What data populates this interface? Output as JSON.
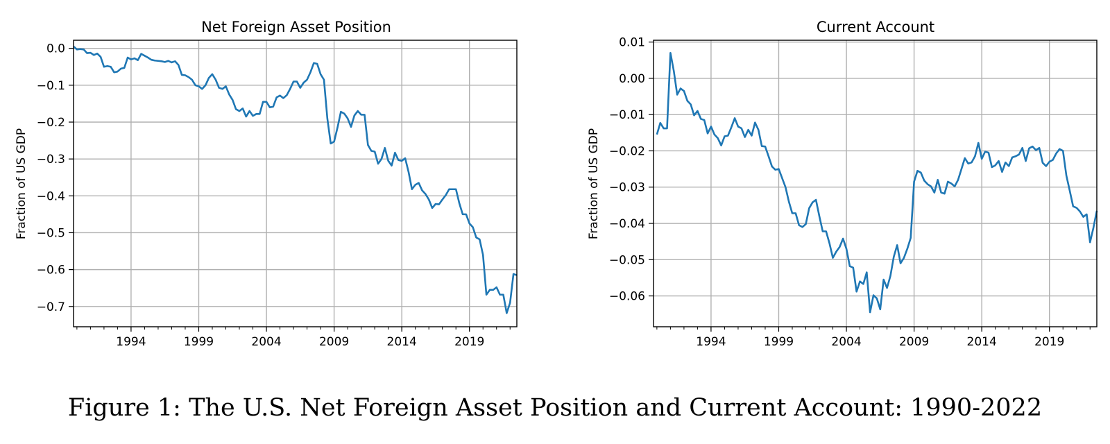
{
  "caption": "Figure 1: The U.S. Net Foreign Asset Position and Current Account: 1990-2022",
  "colors": {
    "line": "#1f77b4",
    "grid": "#b0b0b0",
    "axis": "#000000"
  },
  "chart_data": [
    {
      "type": "line",
      "title": "Net Foreign Asset Position",
      "xlabel": "",
      "ylabel": "Fraction of US GDP",
      "grid": true,
      "xlim": [
        1989.75,
        2022.5
      ],
      "ylim": [
        -0.755,
        0.022
      ],
      "xticks": [
        1994,
        1999,
        2004,
        2009,
        2014,
        2019
      ],
      "xtick_labels": [
        "1994",
        "1999",
        "2004",
        "2009",
        "2014",
        "2019"
      ],
      "yticks": [
        0.0,
        -0.1,
        -0.2,
        -0.3,
        -0.4,
        -0.5,
        -0.6,
        -0.7
      ],
      "ytick_labels": [
        "0.0",
        "−0.1",
        "−0.2",
        "−0.3",
        "−0.4",
        "−0.5",
        "−0.6",
        "−0.7"
      ],
      "series": [
        {
          "x": [
            1989.75,
            1990,
            1990.25,
            1990.5,
            1990.75,
            1991,
            1991.25,
            1991.5,
            1991.75,
            1992,
            1992.25,
            1992.5,
            1992.75,
            1993,
            1993.25,
            1993.5,
            1993.75,
            1994,
            1994.25,
            1994.5,
            1994.75,
            1995,
            1995.25,
            1995.5,
            1995.75,
            1996,
            1996.25,
            1996.5,
            1996.75,
            1997,
            1997.25,
            1997.5,
            1997.75,
            1998,
            1998.25,
            1998.5,
            1998.75,
            1999,
            1999.25,
            1999.5,
            1999.75,
            2000,
            2000.25,
            2000.5,
            2000.75,
            2001,
            2001.25,
            2001.5,
            2001.75,
            2002,
            2002.25,
            2002.5,
            2002.75,
            2003,
            2003.25,
            2003.5,
            2003.75,
            2004,
            2004.25,
            2004.5,
            2004.75,
            2005,
            2005.25,
            2005.5,
            2005.75,
            2006,
            2006.25,
            2006.5,
            2006.75,
            2007,
            2007.25,
            2007.5,
            2007.75,
            2008,
            2008.25,
            2008.5,
            2008.75,
            2009,
            2009.25,
            2009.5,
            2009.75,
            2010,
            2010.25,
            2010.5,
            2010.75,
            2011,
            2011.25,
            2011.5,
            2011.75,
            2012,
            2012.25,
            2012.5,
            2012.75,
            2013,
            2013.25,
            2013.5,
            2013.75,
            2014,
            2014.25,
            2014.5,
            2014.75,
            2015,
            2015.25,
            2015.5,
            2015.75,
            2016,
            2016.25,
            2016.5,
            2016.75,
            2017,
            2017.25,
            2017.5,
            2017.75,
            2018,
            2018.25,
            2018.5,
            2018.75,
            2019,
            2019.25,
            2019.5,
            2019.75,
            2020,
            2020.25,
            2020.5,
            2020.75,
            2021,
            2021.25,
            2021.5,
            2021.75,
            2022,
            2022.25,
            2022.5
          ],
          "values": [
            0.005,
            -0.003,
            -0.002,
            -0.003,
            -0.013,
            -0.012,
            -0.018,
            -0.014,
            -0.023,
            -0.05,
            -0.048,
            -0.05,
            -0.065,
            -0.063,
            -0.055,
            -0.053,
            -0.025,
            -0.03,
            -0.027,
            -0.032,
            -0.015,
            -0.02,
            -0.025,
            -0.031,
            -0.033,
            -0.034,
            -0.035,
            -0.037,
            -0.034,
            -0.038,
            -0.035,
            -0.045,
            -0.072,
            -0.073,
            -0.078,
            -0.085,
            -0.1,
            -0.103,
            -0.11,
            -0.1,
            -0.08,
            -0.07,
            -0.085,
            -0.107,
            -0.11,
            -0.103,
            -0.125,
            -0.14,
            -0.165,
            -0.17,
            -0.163,
            -0.185,
            -0.17,
            -0.183,
            -0.178,
            -0.178,
            -0.145,
            -0.145,
            -0.16,
            -0.158,
            -0.133,
            -0.128,
            -0.135,
            -0.127,
            -0.11,
            -0.09,
            -0.09,
            -0.107,
            -0.093,
            -0.085,
            -0.065,
            -0.04,
            -0.042,
            -0.07,
            -0.085,
            -0.19,
            -0.258,
            -0.253,
            -0.215,
            -0.172,
            -0.177,
            -0.19,
            -0.213,
            -0.182,
            -0.17,
            -0.18,
            -0.18,
            -0.262,
            -0.278,
            -0.28,
            -0.313,
            -0.3,
            -0.27,
            -0.305,
            -0.318,
            -0.283,
            -0.303,
            -0.305,
            -0.298,
            -0.335,
            -0.382,
            -0.37,
            -0.365,
            -0.385,
            -0.395,
            -0.41,
            -0.433,
            -0.422,
            -0.423,
            -0.41,
            -0.398,
            -0.382,
            -0.382,
            -0.382,
            -0.42,
            -0.45,
            -0.45,
            -0.475,
            -0.485,
            -0.513,
            -0.518,
            -0.56,
            -0.668,
            -0.655,
            -0.655,
            -0.648,
            -0.668,
            -0.668,
            -0.718,
            -0.69,
            -0.612,
            -0.615
          ]
        }
      ]
    },
    {
      "type": "line",
      "title": "Current Account",
      "xlabel": "",
      "ylabel": "Fraction of US GDP",
      "grid": true,
      "xlim": [
        1989.75,
        2022.5
      ],
      "ylim": [
        -0.0685,
        0.0105
      ],
      "xticks": [
        1994,
        1999,
        2004,
        2009,
        2014,
        2019
      ],
      "xtick_labels": [
        "1994",
        "1999",
        "2004",
        "2009",
        "2014",
        "2019"
      ],
      "yticks": [
        0.01,
        0.0,
        -0.01,
        -0.02,
        -0.03,
        -0.04,
        -0.05,
        -0.06
      ],
      "ytick_labels": [
        "0.01",
        "0.00",
        "−0.01",
        "−0.02",
        "−0.03",
        "−0.04",
        "−0.05",
        "−0.06"
      ],
      "series": [
        {
          "x": [
            1990,
            1990.25,
            1990.5,
            1990.75,
            1991,
            1991.25,
            1991.5,
            1991.75,
            1992,
            1992.25,
            1992.5,
            1992.75,
            1993,
            1993.25,
            1993.5,
            1993.75,
            1994,
            1994.25,
            1994.5,
            1994.75,
            1995,
            1995.25,
            1995.5,
            1995.75,
            1996,
            1996.25,
            1996.5,
            1996.75,
            1997,
            1997.25,
            1997.5,
            1997.75,
            1998,
            1998.25,
            1998.5,
            1998.75,
            1999,
            1999.25,
            1999.5,
            1999.75,
            2000,
            2000.25,
            2000.5,
            2000.75,
            2001,
            2001.25,
            2001.5,
            2001.75,
            2002,
            2002.25,
            2002.5,
            2002.75,
            2003,
            2003.25,
            2003.5,
            2003.75,
            2004,
            2004.25,
            2004.5,
            2004.75,
            2005,
            2005.25,
            2005.5,
            2005.75,
            2006,
            2006.25,
            2006.5,
            2006.75,
            2007,
            2007.25,
            2007.5,
            2007.75,
            2008,
            2008.25,
            2008.5,
            2008.75,
            2009,
            2009.25,
            2009.5,
            2009.75,
            2010,
            2010.25,
            2010.5,
            2010.75,
            2011,
            2011.25,
            2011.5,
            2011.75,
            2012,
            2012.25,
            2012.5,
            2012.75,
            2013,
            2013.25,
            2013.5,
            2013.75,
            2014,
            2014.25,
            2014.5,
            2014.75,
            2015,
            2015.25,
            2015.5,
            2015.75,
            2016,
            2016.25,
            2016.5,
            2016.75,
            2017,
            2017.25,
            2017.5,
            2017.75,
            2018,
            2018.25,
            2018.5,
            2018.75,
            2019,
            2019.25,
            2019.5,
            2019.75,
            2020,
            2020.25,
            2020.5,
            2020.75,
            2021,
            2021.25,
            2021.5,
            2021.75,
            2022,
            2022.25,
            2022.5
          ],
          "values": [
            -0.0155,
            -0.0123,
            -0.0138,
            -0.0138,
            0.007,
            0.002,
            -0.0045,
            -0.0028,
            -0.0035,
            -0.0062,
            -0.0072,
            -0.0102,
            -0.009,
            -0.0112,
            -0.0115,
            -0.0152,
            -0.0133,
            -0.0155,
            -0.0165,
            -0.0185,
            -0.016,
            -0.0158,
            -0.0135,
            -0.011,
            -0.0133,
            -0.0138,
            -0.0162,
            -0.0142,
            -0.0158,
            -0.0122,
            -0.0142,
            -0.0187,
            -0.0188,
            -0.0215,
            -0.0243,
            -0.0252,
            -0.025,
            -0.0275,
            -0.03,
            -0.034,
            -0.0372,
            -0.0372,
            -0.0405,
            -0.041,
            -0.0402,
            -0.0358,
            -0.0342,
            -0.0335,
            -0.038,
            -0.0422,
            -0.0422,
            -0.0455,
            -0.0495,
            -0.0478,
            -0.0465,
            -0.0442,
            -0.047,
            -0.0518,
            -0.0522,
            -0.0588,
            -0.056,
            -0.0567,
            -0.0535,
            -0.0645,
            -0.0598,
            -0.0607,
            -0.0637,
            -0.0555,
            -0.0578,
            -0.0545,
            -0.0492,
            -0.046,
            -0.051,
            -0.0495,
            -0.047,
            -0.044,
            -0.0285,
            -0.0255,
            -0.026,
            -0.0282,
            -0.0292,
            -0.0298,
            -0.0315,
            -0.028,
            -0.0315,
            -0.0318,
            -0.0285,
            -0.029,
            -0.0298,
            -0.028,
            -0.025,
            -0.022,
            -0.0235,
            -0.0232,
            -0.0215,
            -0.0178,
            -0.0222,
            -0.0202,
            -0.0205,
            -0.0245,
            -0.024,
            -0.0228,
            -0.0258,
            -0.0232,
            -0.0242,
            -0.0218,
            -0.0215,
            -0.021,
            -0.0192,
            -0.0228,
            -0.0193,
            -0.0188,
            -0.0198,
            -0.0192,
            -0.0233,
            -0.0242,
            -0.023,
            -0.0225,
            -0.0207,
            -0.0195,
            -0.02,
            -0.0268,
            -0.031,
            -0.0353,
            -0.0357,
            -0.0367,
            -0.0382,
            -0.0375,
            -0.0452,
            -0.0412,
            -0.0365
          ]
        }
      ]
    }
  ]
}
